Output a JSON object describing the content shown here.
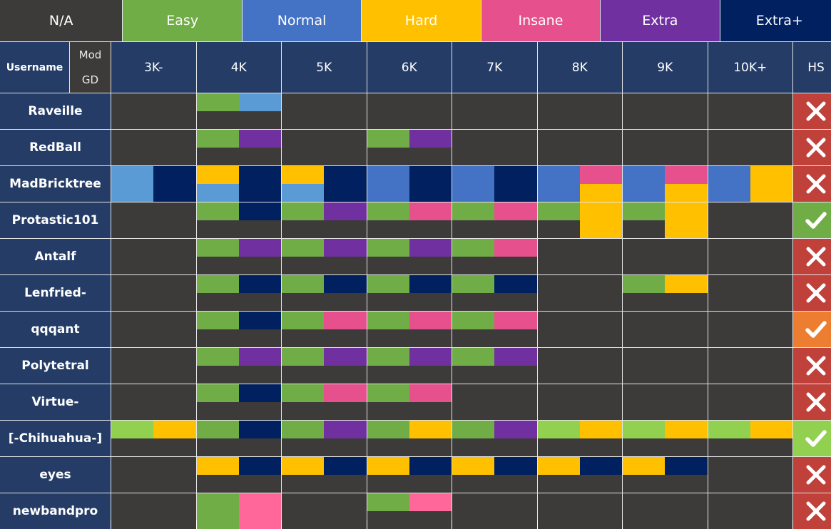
{
  "colors": {
    "N/A": "#3d3b3a",
    "Easy": "#70ad47",
    "Easy+": "#92d050",
    "Normal": "#4472c4",
    "Normal-": "#5b9bd5",
    "Hard": "#ffc000",
    "Insane": "#e6508c",
    "Insane+": "#ff6699",
    "Extra": "#7030a0",
    "Extra+": "#002060"
  },
  "hs_colors": {
    "fail": "#c0403a",
    "pass": "#70ad47",
    "partial": "#ed7d31",
    "pass+": "#92d050"
  },
  "legend": [
    {
      "label": "N/A",
      "key": "N/A"
    },
    {
      "label": "Easy",
      "key": "Easy"
    },
    {
      "label": "Normal",
      "key": "Normal"
    },
    {
      "label": "Hard",
      "key": "Hard"
    },
    {
      "label": "Insane",
      "key": "Insane"
    },
    {
      "label": "Extra",
      "key": "Extra"
    },
    {
      "label": "Extra+",
      "key": "Extra+"
    }
  ],
  "header": {
    "username": "Username",
    "mod": "Mod",
    "gd": "GD",
    "columns": [
      "3K-",
      "4K",
      "5K",
      "6K",
      "7K",
      "8K",
      "9K",
      "10K+"
    ],
    "hs": "HS"
  },
  "rows": [
    {
      "name": "Raveille",
      "hs": "fail",
      "cells": [
        null,
        {
          "tl": "Easy",
          "tr": "Normal-"
        },
        null,
        null,
        null,
        null,
        null,
        null
      ]
    },
    {
      "name": "RedBall",
      "hs": "fail",
      "cells": [
        null,
        {
          "tl": "Easy",
          "tr": "Extra"
        },
        null,
        {
          "tl": "Easy",
          "tr": "Extra"
        },
        null,
        null,
        null,
        null
      ]
    },
    {
      "name": "MadBricktree",
      "hs": "fail",
      "cells": [
        {
          "tl": "Normal-",
          "tr": "Extra+",
          "bl": "Normal-",
          "br": "Extra+"
        },
        {
          "tl": "Hard",
          "tr": "Extra+",
          "bl": "Normal-",
          "br": "Extra+"
        },
        {
          "tl": "Hard",
          "tr": "Extra+",
          "bl": "Normal-",
          "br": "Extra+"
        },
        {
          "tl": "Normal",
          "tr": "Extra+",
          "bl": "Normal",
          "br": "Extra+"
        },
        {
          "tl": "Normal",
          "tr": "Extra+",
          "bl": "Normal",
          "br": "Extra+"
        },
        {
          "tl": "Normal",
          "tr": "Insane",
          "bl": "Normal",
          "br": "Hard"
        },
        {
          "tl": "Normal",
          "tr": "Insane",
          "bl": "Normal",
          "br": "Hard"
        },
        {
          "tl": "Normal",
          "tr": "Hard",
          "bl": "Normal",
          "br": "Hard"
        }
      ]
    },
    {
      "name": "Protastic101",
      "hs": "pass",
      "cells": [
        null,
        {
          "tl": "Easy",
          "tr": "Extra+"
        },
        {
          "tl": "Easy",
          "tr": "Extra"
        },
        {
          "tl": "Easy",
          "tr": "Insane"
        },
        {
          "tl": "Easy",
          "tr": "Insane"
        },
        {
          "tl": "Easy",
          "tr": "Hard",
          "br": "Hard"
        },
        {
          "tl": "Easy",
          "tr": "Hard",
          "br": "Hard"
        },
        null
      ]
    },
    {
      "name": "Antalf",
      "hs": "fail",
      "cells": [
        null,
        {
          "tl": "Easy",
          "tr": "Extra"
        },
        {
          "tl": "Easy",
          "tr": "Extra"
        },
        {
          "tl": "Easy",
          "tr": "Extra"
        },
        {
          "tl": "Easy",
          "tr": "Insane"
        },
        null,
        null,
        null
      ]
    },
    {
      "name": "Lenfried-",
      "hs": "fail",
      "cells": [
        null,
        {
          "tl": "Easy",
          "tr": "Extra+"
        },
        {
          "tl": "Easy",
          "tr": "Extra+"
        },
        {
          "tl": "Easy",
          "tr": "Extra+"
        },
        {
          "tl": "Easy",
          "tr": "Extra+"
        },
        null,
        {
          "tl": "Easy",
          "tr": "Hard"
        },
        null
      ]
    },
    {
      "name": "qqqant",
      "hs": "partial",
      "cells": [
        null,
        {
          "tl": "Easy",
          "tr": "Extra+"
        },
        {
          "tl": "Easy",
          "tr": "Insane"
        },
        {
          "tl": "Easy",
          "tr": "Insane"
        },
        {
          "tl": "Easy",
          "tr": "Insane"
        },
        null,
        null,
        null
      ]
    },
    {
      "name": "Polytetral",
      "hs": "fail",
      "cells": [
        null,
        {
          "tl": "Easy",
          "tr": "Extra"
        },
        {
          "tl": "Easy",
          "tr": "Extra"
        },
        {
          "tl": "Easy",
          "tr": "Extra"
        },
        {
          "tl": "Easy",
          "tr": "Extra"
        },
        null,
        null,
        null
      ]
    },
    {
      "name": "Virtue-",
      "hs": "fail",
      "cells": [
        null,
        {
          "tl": "Easy",
          "tr": "Extra+"
        },
        {
          "tl": "Easy",
          "tr": "Insane"
        },
        {
          "tl": "Easy",
          "tr": "Insane"
        },
        null,
        null,
        null,
        null
      ]
    },
    {
      "name": "[-Chihuahua-]",
      "hs": "pass+",
      "cells": [
        {
          "tl": "Easy+",
          "tr": "Hard"
        },
        {
          "tl": "Easy",
          "tr": "Extra+"
        },
        {
          "tl": "Easy",
          "tr": "Extra"
        },
        {
          "tl": "Easy",
          "tr": "Hard"
        },
        {
          "tl": "Easy",
          "tr": "Extra"
        },
        {
          "tl": "Easy+",
          "tr": "Hard"
        },
        {
          "tl": "Easy+",
          "tr": "Hard"
        },
        {
          "tl": "Easy+",
          "tr": "Hard"
        }
      ]
    },
    {
      "name": "eyes",
      "hs": "fail",
      "cells": [
        null,
        {
          "tl": "Hard",
          "tr": "Extra+"
        },
        {
          "tl": "Hard",
          "tr": "Extra+"
        },
        {
          "tl": "Hard",
          "tr": "Extra+"
        },
        {
          "tl": "Hard",
          "tr": "Extra+"
        },
        {
          "tl": "Hard",
          "tr": "Extra+"
        },
        {
          "tl": "Hard",
          "tr": "Extra+"
        },
        null
      ]
    },
    {
      "name": "newbandpro",
      "hs": "fail",
      "cells": [
        null,
        {
          "tl": "Easy",
          "tr": "Insane+",
          "bl": "Easy",
          "br": "Insane+"
        },
        null,
        {
          "tl": "Easy",
          "tr": "Insane+"
        },
        null,
        null,
        null,
        null
      ]
    }
  ]
}
